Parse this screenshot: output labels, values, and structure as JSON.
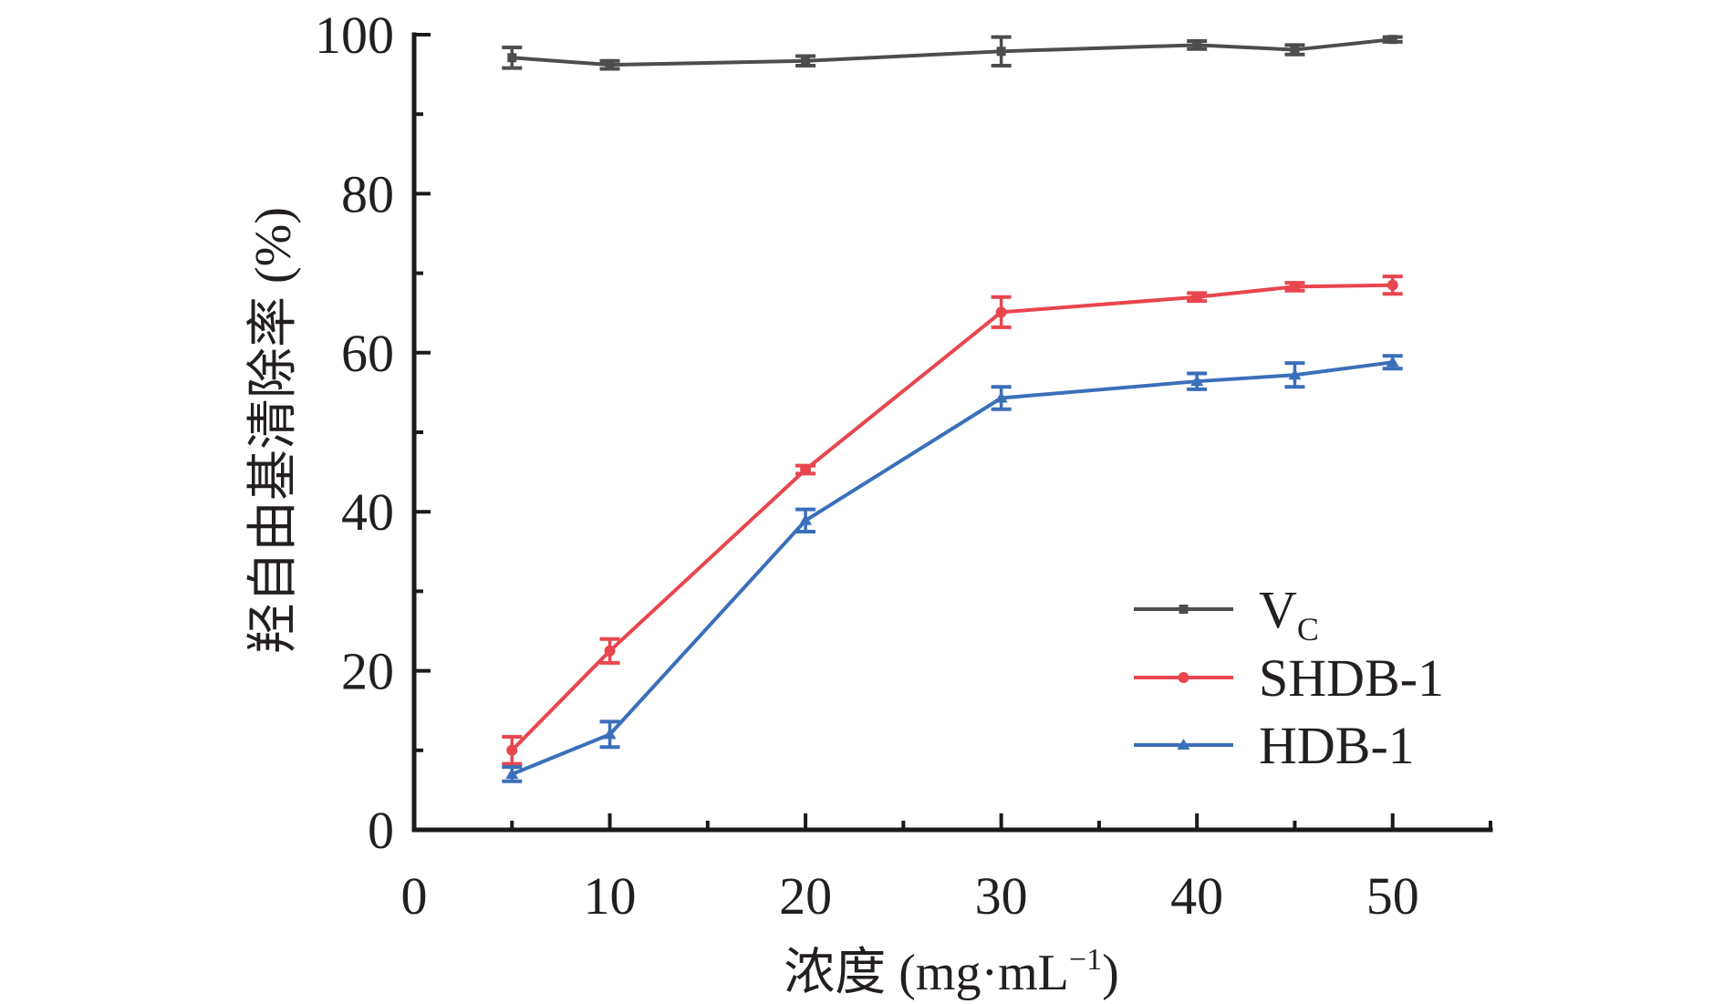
{
  "chart_data": {
    "type": "line",
    "title": "",
    "xlabel": "浓度 (mg·mL⁻¹)",
    "xlabel_parts": {
      "main": "浓度 (mg·mL",
      "sup": "−1",
      "end": ")"
    },
    "ylabel": "羟自由基清除率 (%)",
    "xlim": [
      0,
      55
    ],
    "ylim": [
      0,
      100
    ],
    "x_ticks": [
      0,
      10,
      20,
      30,
      40,
      50
    ],
    "x_tick_labels": [
      "0",
      "10",
      "20",
      "30",
      "40",
      "50"
    ],
    "x_minor_ticks": [
      5,
      15,
      25,
      35,
      45,
      55
    ],
    "y_ticks": [
      0,
      20,
      40,
      60,
      80,
      100
    ],
    "y_tick_labels": [
      "0",
      "20",
      "40",
      "60",
      "80",
      "100"
    ],
    "y_minor_ticks": [
      10,
      30,
      50,
      70,
      90
    ],
    "grid": false,
    "legend_position": "bottom-right",
    "x": [
      5,
      10,
      20,
      30,
      40,
      45,
      50
    ],
    "series": [
      {
        "name": "VC",
        "label_main": "V",
        "label_sub": "C",
        "color": "#4d4d4d",
        "marker": "square",
        "values": [
          97.1,
          96.2,
          96.7,
          97.9,
          98.7,
          98.1,
          99.4
        ],
        "errors": [
          1.3,
          0.5,
          0.6,
          1.8,
          0.5,
          0.6,
          0.3
        ]
      },
      {
        "name": "SHDB-1",
        "label_main": "SHDB-1",
        "label_sub": "",
        "color": "#e8464e",
        "marker": "circle",
        "values": [
          10.0,
          22.5,
          45.3,
          65.1,
          67.0,
          68.3,
          68.5
        ],
        "errors": [
          1.7,
          1.5,
          0.5,
          1.9,
          0.5,
          0.5,
          1.1
        ]
      },
      {
        "name": "HDB-1",
        "label_main": "HDB-1",
        "label_sub": "",
        "color": "#3a6fba",
        "marker": "triangle",
        "values": [
          7.0,
          12.0,
          38.9,
          54.3,
          56.4,
          57.2,
          58.8
        ],
        "errors": [
          0.9,
          1.6,
          1.4,
          1.4,
          1.0,
          1.5,
          0.8
        ]
      }
    ]
  }
}
